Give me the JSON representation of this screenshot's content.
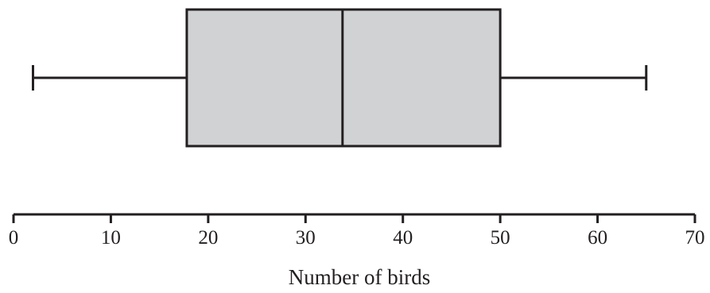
{
  "chart_data": {
    "type": "boxplot",
    "title": "",
    "xlabel": "Number of birds",
    "ylabel": "",
    "xlim": [
      0,
      70
    ],
    "x_ticks": [
      0,
      10,
      20,
      30,
      40,
      50,
      60,
      70
    ],
    "x_tick_labels": [
      "0",
      "10",
      "20",
      "30",
      "40",
      "50",
      "60",
      "70"
    ],
    "grid": false,
    "box": {
      "min": 2,
      "q1": 17.8,
      "median": 33.8,
      "q3": 50,
      "max": 65
    },
    "colors": {
      "box_fill": "#d1d2d4",
      "stroke": "#231f20"
    }
  }
}
